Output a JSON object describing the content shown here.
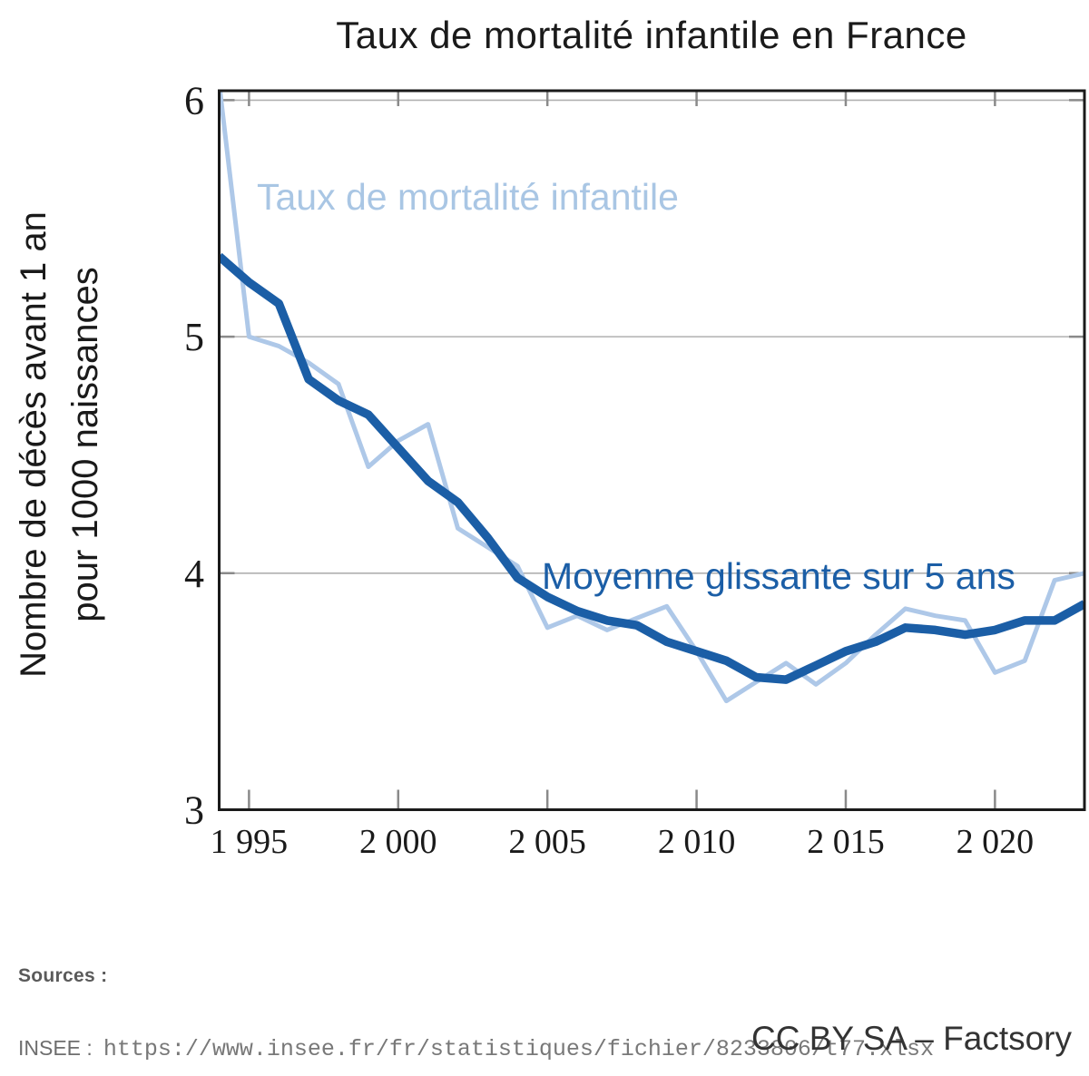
{
  "title": "Taux de mortalité infantile en France",
  "ylabel_line1": "Nombre de décès avant 1 an",
  "ylabel_line2": "pour 1000 naissances",
  "series_labels": {
    "raw": "Taux de mortalité infantile",
    "avg": "Moyenne glissante sur 5 ans"
  },
  "footer": {
    "sources_label": "Sources :",
    "source_name": "INSEE :",
    "source_url": "https://www.insee.fr/fr/statistiques/fichier/8233806/t77.xlsx",
    "credit": "CC BY SA – Factsory"
  },
  "colors": {
    "raw_line": "#aec8e8",
    "raw_label": "#a9c6e4",
    "avg_line": "#1b5ea6",
    "avg_label": "#1b5ea6",
    "grid": "#b0b0b0",
    "tick": "#8a8a8a",
    "frame": "#1a1a1a"
  },
  "chart_data": {
    "type": "line",
    "title": "Taux de mortalité infantile en France",
    "xlabel": "",
    "ylabel": "Nombre de décès avant 1 an pour 1000 naissances",
    "xlim": [
      1994,
      2023
    ],
    "ylim": [
      3,
      6.04
    ],
    "grid": "horizontal",
    "legend_position": "inline-labels",
    "x": [
      1994,
      1995,
      1996,
      1997,
      1998,
      1999,
      2000,
      2001,
      2002,
      2003,
      2004,
      2005,
      2006,
      2007,
      2008,
      2009,
      2010,
      2011,
      2012,
      2013,
      2014,
      2015,
      2016,
      2017,
      2018,
      2019,
      2020,
      2021,
      2022,
      2023
    ],
    "series": [
      {
        "name": "Taux de mortalité infantile",
        "color": "#aec8e8",
        "width": 5,
        "values": [
          6.07,
          5.0,
          4.96,
          4.89,
          4.8,
          4.45,
          4.56,
          4.63,
          4.19,
          4.11,
          4.03,
          3.77,
          3.82,
          3.76,
          3.81,
          3.86,
          3.67,
          3.46,
          3.54,
          3.62,
          3.53,
          3.62,
          3.74,
          3.85,
          3.82,
          3.8,
          3.58,
          3.63,
          3.97,
          4.0
        ]
      },
      {
        "name": "Moyenne glissante sur 5 ans",
        "color": "#1b5ea6",
        "width": 9.5,
        "values": [
          5.34,
          5.23,
          5.14,
          4.82,
          4.73,
          4.67,
          4.53,
          4.39,
          4.3,
          4.15,
          3.98,
          3.9,
          3.84,
          3.8,
          3.78,
          3.71,
          3.67,
          3.63,
          3.56,
          3.55,
          3.61,
          3.67,
          3.71,
          3.77,
          3.76,
          3.74,
          3.76,
          3.8,
          3.8,
          3.87
        ]
      }
    ],
    "x_ticks": {
      "values": [
        1995,
        2000,
        2005,
        2010,
        2015,
        2020
      ],
      "labels": [
        "1 995",
        "2 000",
        "2 005",
        "2 010",
        "2 015",
        "2 020"
      ]
    },
    "y_ticks": {
      "values": [
        3,
        4,
        5,
        6
      ],
      "labels": [
        "3",
        "4",
        "5",
        "6"
      ]
    }
  }
}
